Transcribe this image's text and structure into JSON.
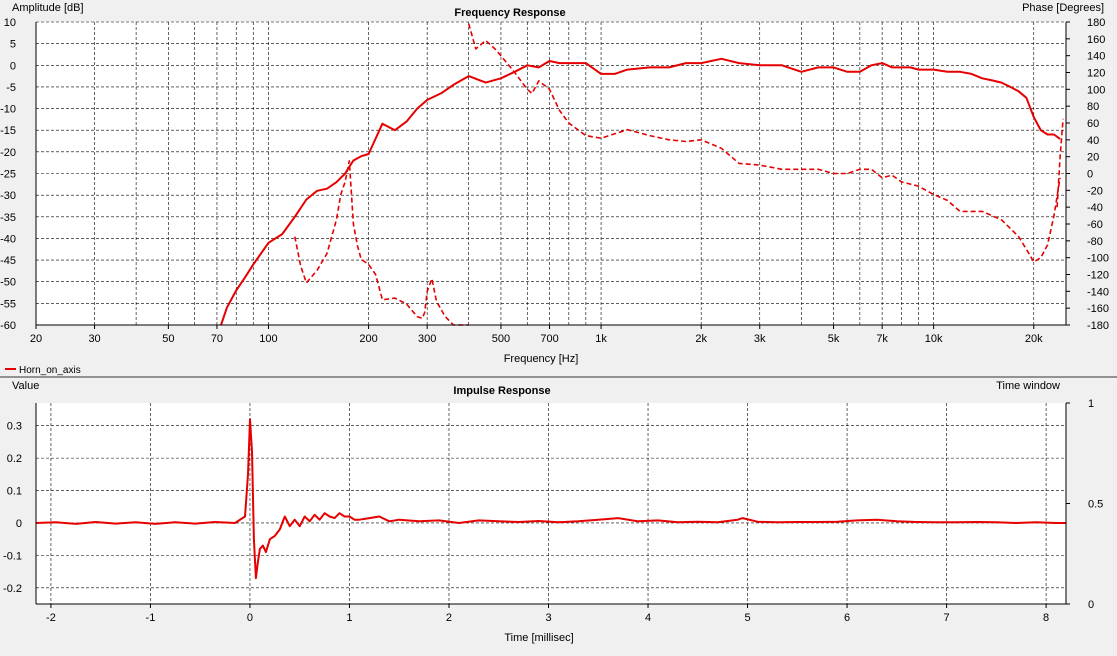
{
  "chart_data": [
    {
      "type": "line",
      "title": "Frequency Response",
      "xlabel": "Frequency [Hz]",
      "ylabel": "Amplitude [dB]",
      "y2label": "Phase [Degrees]",
      "xscale": "log",
      "xlim": [
        20,
        25000
      ],
      "ylim": [
        -60,
        10
      ],
      "y2lim": [
        -180,
        180
      ],
      "grid": true,
      "xticks": [
        20,
        30,
        50,
        70,
        100,
        200,
        300,
        500,
        700,
        1000,
        2000,
        3000,
        5000,
        7000,
        10000,
        20000
      ],
      "xtick_labels": [
        "20",
        "30",
        "50",
        "70",
        "100",
        "200",
        "300",
        "500",
        "700",
        "1k",
        "2k",
        "3k",
        "5k",
        "7k",
        "10k",
        "20k"
      ],
      "yticks": [
        10,
        5,
        0,
        -5,
        -10,
        -15,
        -20,
        -25,
        -30,
        -35,
        -40,
        -45,
        -50,
        -55,
        -60
      ],
      "ytick_labels": [
        "10",
        "5",
        "0",
        "-5",
        "-10",
        "-15",
        "-20",
        "-25",
        "-30",
        "-35",
        "-40",
        "-45",
        "-50",
        "-55",
        "-60"
      ],
      "y2ticks": [
        180,
        160,
        140,
        120,
        100,
        80,
        60,
        40,
        20,
        0,
        -20,
        -40,
        -60,
        -80,
        -100,
        -120,
        -140,
        -160,
        -180
      ],
      "y2tick_labels": [
        "180",
        "160",
        "140",
        "120",
        "100",
        "80",
        "60",
        "40",
        "20",
        "0",
        "-20",
        "-40",
        "-60",
        "-80",
        "-100",
        "-120",
        "-140",
        "-160",
        "-180"
      ],
      "legend": {
        "placement": "bottom-left",
        "entries": [
          "Horn_on_axis"
        ]
      },
      "series": [
        {
          "name": "Horn_on_axis",
          "kind": "amplitude",
          "axis": "left",
          "color": "#e60000",
          "style": "solid",
          "x": [
            72,
            75,
            80,
            85,
            90,
            100,
            110,
            120,
            130,
            140,
            150,
            160,
            170,
            180,
            190,
            200,
            220,
            240,
            260,
            280,
            300,
            330,
            360,
            400,
            450,
            500,
            550,
            600,
            650,
            700,
            750,
            800,
            900,
            1000,
            1100,
            1200,
            1400,
            1600,
            1800,
            2000,
            2300,
            2600,
            3000,
            3500,
            4000,
            4500,
            5000,
            5500,
            6000,
            6500,
            7000,
            7500,
            8000,
            8500,
            9000,
            10000,
            11000,
            12000,
            13000,
            14000,
            15000,
            16000,
            17000,
            18000,
            19000,
            20000,
            21000,
            22000,
            23000,
            24000
          ],
          "y": [
            -60,
            -56,
            -52,
            -49,
            -46,
            -41,
            -39,
            -35,
            -31,
            -29,
            -28.5,
            -27,
            -25,
            -22,
            -21,
            -20.5,
            -13.5,
            -15,
            -13,
            -10,
            -8,
            -6.5,
            -4.5,
            -2.5,
            -4,
            -3,
            -1.5,
            0,
            -0.5,
            1,
            0.5,
            0.5,
            0.5,
            -2,
            -2,
            -1,
            -0.5,
            -0.5,
            0.5,
            0.5,
            1.5,
            0.5,
            0,
            0,
            -1.5,
            -0.5,
            -0.5,
            -1.5,
            -1.5,
            0,
            0.5,
            -0.5,
            -0.5,
            -0.5,
            -1,
            -1,
            -1.5,
            -1.5,
            -2,
            -3,
            -3.5,
            -4,
            -5,
            -6,
            -7.5,
            -12,
            -15,
            -16,
            -16,
            -17
          ]
        },
        {
          "name": "Horn_on_axis",
          "kind": "phase",
          "axis": "right",
          "color": "#e60000",
          "style": "dashed",
          "segments": [
            {
              "x": [
                120,
                125,
                130,
                140,
                150,
                160,
                165,
                170,
                175,
                180,
                185,
                190,
                200,
                210,
                220,
                240,
                260,
                280,
                290,
                295,
                300,
                310,
                320,
                340,
                360,
                380,
                400
              ],
              "y": [
                -75,
                -110,
                -130,
                -115,
                -95,
                -55,
                -25,
                -10,
                15,
                -60,
                -85,
                -102,
                -108,
                -120,
                -150,
                -148,
                -155,
                -170,
                -172,
                -165,
                -140,
                -125,
                -152,
                -170,
                -180,
                -195,
                -195
              ]
            },
            {
              "x": [
                400,
                420,
                450,
                480,
                500,
                550,
                600,
                620,
                650,
                700,
                750,
                800,
                900,
                1000,
                1200,
                1400,
                1600,
                1800,
                2000,
                2300,
                2600,
                3000,
                3500,
                4000,
                4500,
                5000,
                5500,
                6000,
                6500,
                7000,
                7500,
                8000,
                9000,
                10000,
                11000,
                12000,
                14000,
                16000,
                18000,
                19000,
                20000,
                21000,
                22000,
                23000,
                24000
              ],
              "y": [
                178,
                148,
                158,
                148,
                140,
                120,
                100,
                95,
                110,
                100,
                75,
                60,
                45,
                42,
                52,
                45,
                40,
                38,
                40,
                30,
                12,
                10,
                5,
                5,
                5,
                0,
                0,
                5,
                5,
                -5,
                -2,
                -10,
                -15,
                -25,
                -32,
                -45,
                -45,
                -55,
                -75,
                -90,
                -105,
                -100,
                -85,
                -50,
                -5
              ]
            },
            {
              "x": [
                23500,
                24000,
                24500
              ],
              "y": [
                -40,
                20,
                65
              ]
            }
          ]
        }
      ]
    },
    {
      "type": "line",
      "title": "Impulse Response",
      "xlabel": "Time [millisec]",
      "ylabel": "Value",
      "y2label": "Time window",
      "xlim": [
        -2.15,
        8.2
      ],
      "ylim": [
        -0.25,
        0.37
      ],
      "y2lim": [
        0,
        1
      ],
      "grid": true,
      "xticks": [
        -2,
        -1,
        0,
        1,
        2,
        3,
        4,
        5,
        6,
        7,
        8
      ],
      "xtick_labels": [
        "-2",
        "-1",
        "0",
        "1",
        "2",
        "3",
        "4",
        "5",
        "6",
        "7",
        "8"
      ],
      "yticks": [
        0.3,
        0.2,
        0.1,
        0,
        -0.1,
        -0.2
      ],
      "ytick_labels": [
        "0.3",
        "0.2",
        "0.1",
        "0",
        "-0.1",
        "-0.2"
      ],
      "y2ticks": [
        1,
        0.5,
        0
      ],
      "y2tick_labels": [
        "1",
        "0.5",
        "0"
      ],
      "series": [
        {
          "name": "Horn_on_axis",
          "axis": "left",
          "color": "#e60000",
          "style": "solid",
          "x": [
            -2.15,
            -1.95,
            -1.75,
            -1.55,
            -1.35,
            -1.15,
            -0.95,
            -0.75,
            -0.55,
            -0.35,
            -0.15,
            -0.05,
            -0.02,
            0,
            0.02,
            0.04,
            0.06,
            0.08,
            0.1,
            0.13,
            0.16,
            0.2,
            0.25,
            0.3,
            0.35,
            0.4,
            0.45,
            0.5,
            0.55,
            0.6,
            0.65,
            0.7,
            0.75,
            0.8,
            0.85,
            0.9,
            0.95,
            1.0,
            1.05,
            1.1,
            1.2,
            1.3,
            1.4,
            1.5,
            1.7,
            1.9,
            2.1,
            2.3,
            2.5,
            2.7,
            2.9,
            3.1,
            3.3,
            3.5,
            3.7,
            3.9,
            4.1,
            4.3,
            4.5,
            4.7,
            4.9,
            4.95,
            5.1,
            5.3,
            5.5,
            5.7,
            5.9,
            6.1,
            6.3,
            6.5,
            6.7,
            6.9,
            7.1,
            7.3,
            7.5,
            7.7,
            7.9,
            8.1,
            8.2
          ],
          "y": [
            0,
            0.002,
            -0.003,
            0.003,
            -0.002,
            0.002,
            -0.003,
            0.002,
            -0.002,
            0.003,
            0,
            0.02,
            0.15,
            0.32,
            0.22,
            -0.05,
            -0.17,
            -0.12,
            -0.08,
            -0.07,
            -0.09,
            -0.05,
            -0.04,
            -0.02,
            0.02,
            -0.01,
            0.01,
            -0.01,
            0.02,
            0.005,
            0.025,
            0.01,
            0.03,
            0.02,
            0.015,
            0.03,
            0.02,
            0.02,
            0.01,
            0.01,
            0.015,
            0.02,
            0.005,
            0.01,
            0.005,
            0.008,
            0,
            0.008,
            0.005,
            0.003,
            0.006,
            0.002,
            0.005,
            0.01,
            0.015,
            0.005,
            0.008,
            0.002,
            0.004,
            0.002,
            0.01,
            0.015,
            0.004,
            0.002,
            0.003,
            0.003,
            0.004,
            0.008,
            0.01,
            0.005,
            0.003,
            0.002,
            0.002,
            0.003,
            0.002,
            0,
            0.002,
            0,
            0
          ]
        }
      ]
    }
  ]
}
